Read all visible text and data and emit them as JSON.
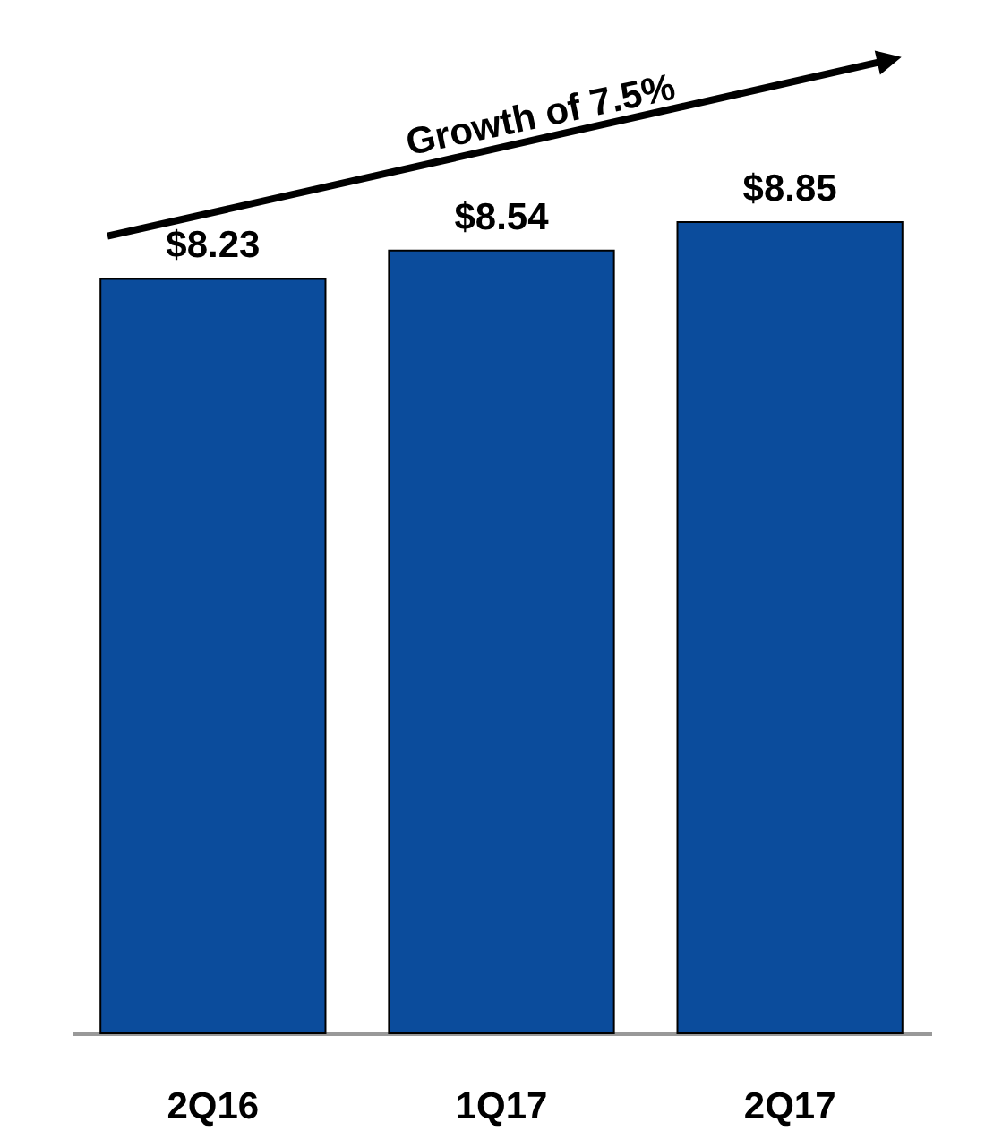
{
  "chart_data": {
    "type": "bar",
    "categories": [
      "2Q16",
      "1Q17",
      "2Q17"
    ],
    "values": [
      8.23,
      8.54,
      8.85
    ],
    "value_labels": [
      "$8.23",
      "$8.54",
      "$8.85"
    ],
    "color": "#0b4c9c",
    "annotations": [
      "Growth of 7.5%"
    ],
    "tick_labels": "x",
    "grid": false,
    "legend": false
  }
}
